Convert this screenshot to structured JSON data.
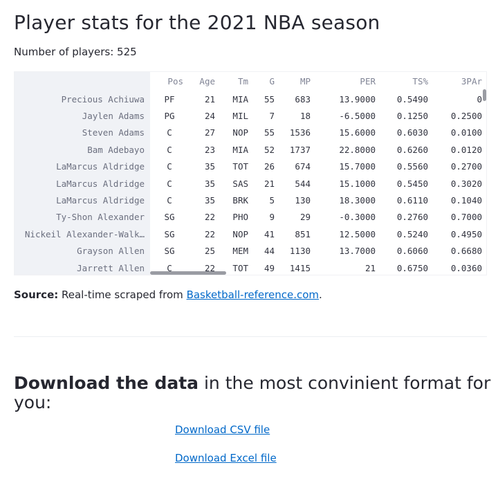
{
  "page": {
    "title": "Player stats for the 2021 NBA season",
    "count_label": "Number of players: 525"
  },
  "table": {
    "columns": [
      "",
      "Pos",
      "Age",
      "Tm",
      "G",
      "MP",
      "PER",
      "TS%",
      "3PAr"
    ],
    "rows": [
      [
        "Precious Achiuwa",
        "PF",
        "21",
        "MIA",
        "55",
        "683",
        "13.9000",
        "0.5490",
        "0"
      ],
      [
        "Jaylen Adams",
        "PG",
        "24",
        "MIL",
        "7",
        "18",
        "-6.5000",
        "0.1250",
        "0.2500"
      ],
      [
        "Steven Adams",
        "C",
        "27",
        "NOP",
        "55",
        "1536",
        "15.6000",
        "0.6030",
        "0.0100"
      ],
      [
        "Bam Adebayo",
        "C",
        "23",
        "MIA",
        "52",
        "1737",
        "22.8000",
        "0.6260",
        "0.0120"
      ],
      [
        "LaMarcus Aldridge",
        "C",
        "35",
        "TOT",
        "26",
        "674",
        "15.7000",
        "0.5560",
        "0.2700"
      ],
      [
        "LaMarcus Aldridge",
        "C",
        "35",
        "SAS",
        "21",
        "544",
        "15.1000",
        "0.5450",
        "0.3020"
      ],
      [
        "LaMarcus Aldridge",
        "C",
        "35",
        "BRK",
        "5",
        "130",
        "18.3000",
        "0.6110",
        "0.1040"
      ],
      [
        "Ty-Shon Alexander",
        "SG",
        "22",
        "PHO",
        "9",
        "29",
        "-0.3000",
        "0.2760",
        "0.7000"
      ],
      [
        "Nickeil Alexander-Walk…",
        "SG",
        "22",
        "NOP",
        "41",
        "851",
        "12.5000",
        "0.5240",
        "0.4950"
      ],
      [
        "Grayson Allen",
        "SG",
        "25",
        "MEM",
        "44",
        "1130",
        "13.7000",
        "0.6060",
        "0.6680"
      ],
      [
        "Jarrett Allen",
        "C",
        "22",
        "TOT",
        "49",
        "1415",
        "21",
        "0.6750",
        "0.0360"
      ]
    ]
  },
  "source": {
    "label": "Source:",
    "text": " Real-time scraped from ",
    "link_text": "Basketball-reference.com",
    "end": "."
  },
  "download": {
    "heading_bold": "Download the data",
    "heading_rest": " in the most convinient format for you:",
    "csv_link": "Download CSV file",
    "excel_link": "Download Excel file"
  }
}
